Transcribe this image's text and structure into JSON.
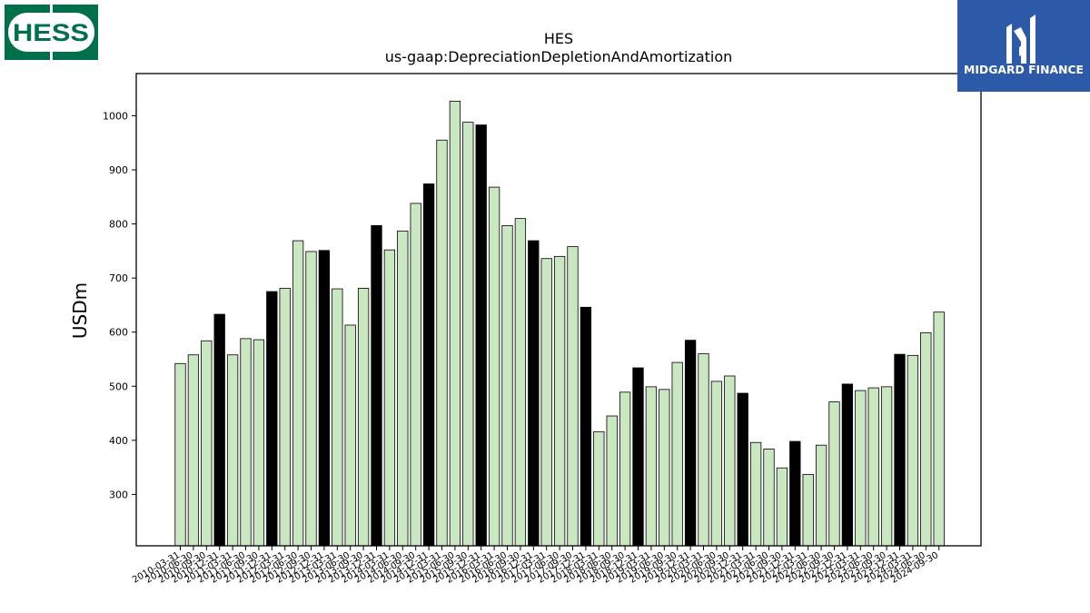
{
  "logos": {
    "left": {
      "text": "HESS",
      "background": "#00704a"
    },
    "right": {
      "text": "MIDGARD FINANCE",
      "background": "#2d5aa8"
    }
  },
  "chart_data": {
    "type": "bar",
    "title": "HES",
    "subtitle": "us-gaap:DepreciationDepletionAndAmortization",
    "xlabel": "",
    "ylabel": "USDm",
    "ylim": [
      205,
      1078
    ],
    "yticks": [
      300,
      400,
      500,
      600,
      700,
      800,
      900,
      1000
    ],
    "grid": false,
    "colors": {
      "quarter": "#c9e7c0",
      "fiscal_year_end": "#000000",
      "edge": "#000000"
    },
    "categories": [
      "2010-03-31",
      "2010-06-30",
      "2010-09-30",
      "2010-12-31",
      "2011-03-31",
      "2011-06-30",
      "2011-09-30",
      "2011-12-31",
      "2012-03-31",
      "2012-06-30",
      "2012-09-30",
      "2012-12-31",
      "2013-03-31",
      "2013-06-30",
      "2013-09-30",
      "2013-12-31",
      "2014-03-31",
      "2014-06-30",
      "2014-09-30",
      "2014-12-31",
      "2015-03-31",
      "2015-06-30",
      "2015-09-30",
      "2015-12-31",
      "2016-03-31",
      "2016-06-30",
      "2016-09-30",
      "2016-12-31",
      "2017-03-31",
      "2017-06-30",
      "2017-09-30",
      "2017-12-31",
      "2018-03-31",
      "2018-06-30",
      "2018-09-30",
      "2018-12-31",
      "2019-03-31",
      "2019-06-30",
      "2019-09-30",
      "2019-12-31",
      "2020-03-31",
      "2020-06-30",
      "2020-09-30",
      "2020-12-31",
      "2021-03-31",
      "2021-06-30",
      "2021-09-30",
      "2021-12-31",
      "2022-03-31",
      "2022-06-30",
      "2022-09-30",
      "2022-12-31",
      "2023-03-31",
      "2023-06-30",
      "2023-09-30",
      "2023-12-31",
      "2024-03-31",
      "2024-06-30",
      "2024-09-30"
    ],
    "values": [
      542,
      558,
      584,
      633,
      558,
      588,
      586,
      675,
      681,
      769,
      749,
      751,
      680,
      613,
      681,
      797,
      752,
      787,
      838,
      874,
      955,
      1027,
      988,
      983,
      868,
      797,
      810,
      769,
      736,
      740,
      758,
      646,
      416,
      445,
      489,
      534,
      499,
      494,
      544,
      585,
      560,
      509,
      519,
      487,
      396,
      384,
      349,
      398,
      337,
      391,
      471,
      504,
      492,
      497,
      499,
      559,
      557,
      599,
      637
    ],
    "highlight_every": 4
  }
}
